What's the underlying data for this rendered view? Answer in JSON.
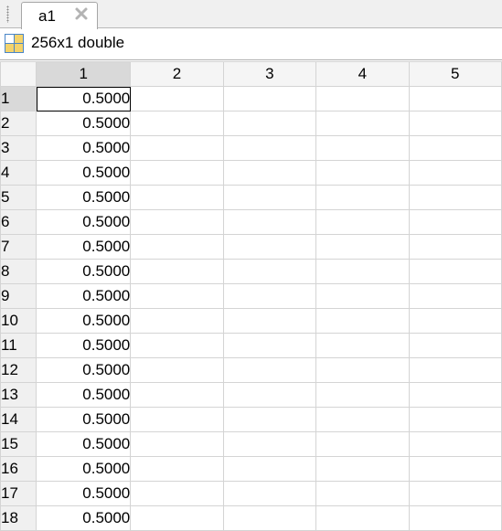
{
  "tab": {
    "label": "a1"
  },
  "info": {
    "text": "256x1 double",
    "icon": "variable-grid-icon"
  },
  "grid": {
    "columns": [
      "1",
      "2",
      "3",
      "4",
      "5"
    ],
    "rows": [
      {
        "label": "1",
        "value": "0.5000"
      },
      {
        "label": "2",
        "value": "0.5000"
      },
      {
        "label": "3",
        "value": "0.5000"
      },
      {
        "label": "4",
        "value": "0.5000"
      },
      {
        "label": "5",
        "value": "0.5000"
      },
      {
        "label": "6",
        "value": "0.5000"
      },
      {
        "label": "7",
        "value": "0.5000"
      },
      {
        "label": "8",
        "value": "0.5000"
      },
      {
        "label": "9",
        "value": "0.5000"
      },
      {
        "label": "10",
        "value": "0.5000"
      },
      {
        "label": "11",
        "value": "0.5000"
      },
      {
        "label": "12",
        "value": "0.5000"
      },
      {
        "label": "13",
        "value": "0.5000"
      },
      {
        "label": "14",
        "value": "0.5000"
      },
      {
        "label": "15",
        "value": "0.5000"
      },
      {
        "label": "16",
        "value": "0.5000"
      },
      {
        "label": "17",
        "value": "0.5000"
      },
      {
        "label": "18",
        "value": "0.5000"
      }
    ]
  },
  "colors": {
    "selected_header": "#d9d9d9",
    "grid_line": "#d4d4d4",
    "icon_yellow": "#f4d36b",
    "icon_blue": "#4a86c8"
  }
}
